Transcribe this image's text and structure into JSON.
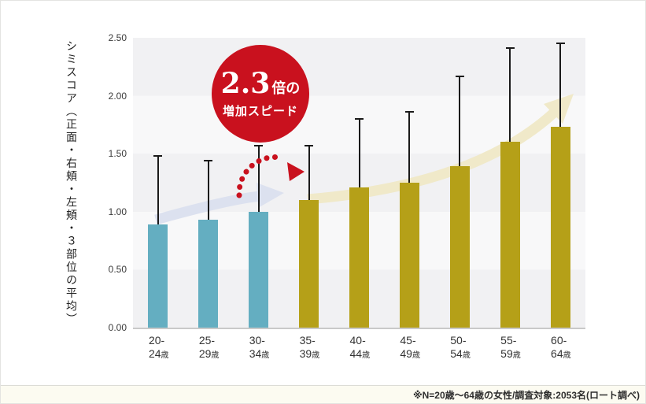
{
  "badge": {
    "value": "2.3",
    "value_suffix": "倍の",
    "line2": "増加スピード",
    "bg_color": "#c9111e",
    "text_color": "#ffffff"
  },
  "footer": {
    "note": "※N=20歳～64歳の女性/調査対象:2053名(ロート調べ)",
    "bg_color": "#fcfbf1"
  },
  "annotations": {
    "blue_arrow_color": "#dce1ef",
    "beige_arrow_color": "#f0e9c9",
    "red_dotted_arrow_color": "#c9111e"
  },
  "chart_data": {
    "type": "bar",
    "title": "",
    "xlabel": "",
    "ylabel": "シミスコア（正面・右頬・左頬・３部位の平均）",
    "ylim": [
      0,
      2.5
    ],
    "ytick_labels": [
      "0.00",
      "0.50",
      "1.00",
      "1.50",
      "2.00",
      "2.50"
    ],
    "grid": "banded-rows",
    "band_colors": [
      "#f1f1f3",
      "#f8f8f9"
    ],
    "legend": "none",
    "categories": [
      "20-24歳",
      "25-29歳",
      "30-34歳",
      "35-39歳",
      "40-44歳",
      "45-49歳",
      "50-54歳",
      "55-59歳",
      "60-64歳"
    ],
    "category_lines": [
      {
        "line1": "20-",
        "num": "24",
        "unit": "歳"
      },
      {
        "line1": "25-",
        "num": "29",
        "unit": "歳"
      },
      {
        "line1": "30-",
        "num": "34",
        "unit": "歳"
      },
      {
        "line1": "35-",
        "num": "39",
        "unit": "歳"
      },
      {
        "line1": "40-",
        "num": "44",
        "unit": "歳"
      },
      {
        "line1": "45-",
        "num": "49",
        "unit": "歳"
      },
      {
        "line1": "50-",
        "num": "54",
        "unit": "歳"
      },
      {
        "line1": "55-",
        "num": "59",
        "unit": "歳"
      },
      {
        "line1": "60-",
        "num": "64",
        "unit": "歳"
      }
    ],
    "values": [
      0.89,
      0.93,
      1.0,
      1.1,
      1.21,
      1.25,
      1.39,
      1.6,
      1.73
    ],
    "error_upper_tops": [
      1.48,
      1.44,
      1.57,
      1.57,
      1.8,
      1.86,
      2.17,
      2.41,
      2.45
    ],
    "bar_colors": [
      "#64aec1",
      "#64aec1",
      "#64aec1",
      "#b5a018",
      "#b5a018",
      "#b5a018",
      "#b5a018",
      "#b5a018",
      "#b5a018"
    ],
    "error_bar_color": "#1a1a1a"
  }
}
